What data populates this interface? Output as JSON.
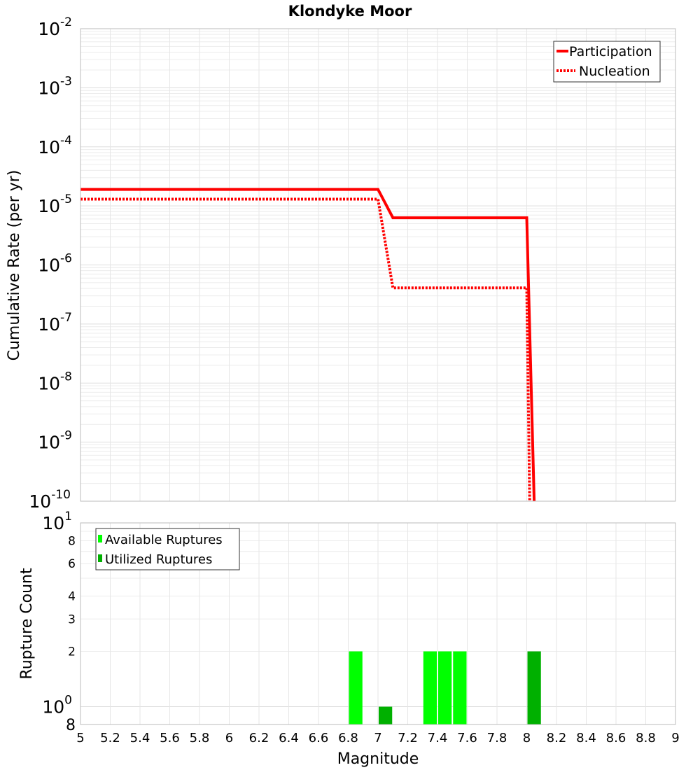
{
  "chart_data": [
    {
      "type": "line",
      "title": "Klondyke Moor",
      "xlabel": "",
      "ylabel": "Cumulative Rate (per yr)",
      "yscale": "log",
      "xlim": [
        5,
        9
      ],
      "ylim_exponents": [
        -10,
        -2
      ],
      "y_tick_labels": [
        {
          "base": "10",
          "exp": "-2"
        },
        {
          "base": "10",
          "exp": "-3"
        },
        {
          "base": "10",
          "exp": "-4"
        },
        {
          "base": "10",
          "exp": "-5"
        },
        {
          "base": "10",
          "exp": "-6"
        },
        {
          "base": "10",
          "exp": "-7"
        },
        {
          "base": "10",
          "exp": "-8"
        },
        {
          "base": "10",
          "exp": "-9"
        },
        {
          "base": "10",
          "exp": "-10"
        }
      ],
      "legend_position": "top-right",
      "series": [
        {
          "name": "Participation",
          "style": "solid",
          "color": "#ff0000",
          "points": [
            [
              5.0,
              1.9e-05
            ],
            [
              7.0,
              1.9e-05
            ],
            [
              7.1,
              6.3e-06
            ],
            [
              8.0,
              6.3e-06
            ],
            [
              8.05,
              1e-10
            ]
          ]
        },
        {
          "name": "Nucleation",
          "style": "dotted",
          "color": "#ff0000",
          "points": [
            [
              5.0,
              1.3e-05
            ],
            [
              7.0,
              1.3e-05
            ],
            [
              7.1,
              4.1e-07
            ],
            [
              8.0,
              4.1e-07
            ],
            [
              8.02,
              1e-10
            ]
          ]
        }
      ]
    },
    {
      "type": "bar",
      "title": "",
      "xlabel": "Magnitude",
      "ylabel": "Rupture Count",
      "yscale": "log",
      "xlim": [
        5,
        9
      ],
      "ylim": [
        0.8,
        10
      ],
      "x_ticks": [
        "5",
        "5.2",
        "5.4",
        "5.6",
        "5.8",
        "6",
        "6.2",
        "6.4",
        "6.6",
        "6.8",
        "7",
        "7.2",
        "7.4",
        "7.6",
        "7.8",
        "8",
        "8.2",
        "8.4",
        "8.6",
        "8.8",
        "9"
      ],
      "y_minor_ticks": [
        {
          "value": 8,
          "label": "8"
        },
        {
          "value": 6,
          "label": "6"
        },
        {
          "value": 4,
          "label": "4"
        },
        {
          "value": 3,
          "label": "3"
        },
        {
          "value": 2,
          "label": "2"
        }
      ],
      "y_major_ticks": [
        {
          "value": 10,
          "base": "10",
          "exp": "1"
        },
        {
          "value": 1,
          "base": "10",
          "exp": "0"
        }
      ],
      "y_bottom_label": "8",
      "legend_position": "top-left",
      "bin_width": 0.1,
      "series": [
        {
          "name": "Available Ruptures",
          "color": "#00ff00",
          "bars": [
            {
              "x": 6.85,
              "value": 2
            },
            {
              "x": 7.35,
              "value": 2
            },
            {
              "x": 7.45,
              "value": 2
            },
            {
              "x": 7.55,
              "value": 2
            }
          ]
        },
        {
          "name": "Utilized Ruptures",
          "color": "#00b000",
          "bars": [
            {
              "x": 7.05,
              "value": 1
            },
            {
              "x": 8.05,
              "value": 2
            }
          ]
        }
      ]
    }
  ]
}
